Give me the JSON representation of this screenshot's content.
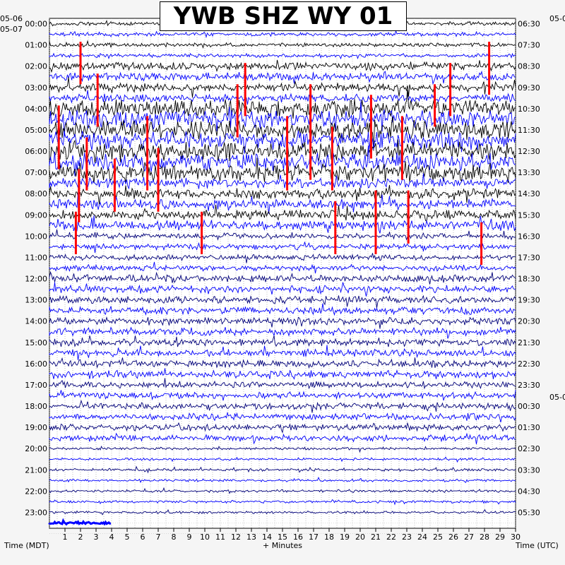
{
  "chart_data": {
    "type": "line",
    "title": "YWB SHZ WY 01",
    "xlabel": "+ Minutes",
    "left_axis_label": "Time (MDT)",
    "right_axis_label": "Time (UTC)",
    "x_ticks": [
      "1",
      "2",
      "3",
      "4",
      "5",
      "6",
      "7",
      "8",
      "9",
      "10",
      "11",
      "12",
      "13",
      "14",
      "15",
      "16",
      "17",
      "18",
      "19",
      "20",
      "21",
      "22",
      "23",
      "24",
      "25",
      "26",
      "27",
      "28",
      "29",
      "30"
    ],
    "xlim": [
      0,
      30
    ],
    "left_date_labels": [
      "05-06",
      "05-07"
    ],
    "right_date_labels": [
      "05-0",
      "05-0"
    ],
    "left_hours": [
      "00:00",
      "01:00",
      "02:00",
      "03:00",
      "04:00",
      "05:00",
      "06:00",
      "07:00",
      "08:00",
      "09:00",
      "10:00",
      "11:00",
      "12:00",
      "13:00",
      "14:00",
      "15:00",
      "16:00",
      "17:00",
      "18:00",
      "19:00",
      "20:00",
      "21:00",
      "22:00",
      "23:00"
    ],
    "right_hours": [
      "06:30",
      "07:30",
      "08:30",
      "09:30",
      "10:30",
      "11:30",
      "12:30",
      "13:30",
      "14:30",
      "15:30",
      "16:30",
      "17:30",
      "18:30",
      "19:30",
      "20:30",
      "21:30",
      "22:30",
      "23:30",
      "00:30",
      "01:30",
      "02:30",
      "03:30",
      "04:30",
      "05:30"
    ],
    "trace_colors": [
      "#000000",
      "#ff0000",
      "#0000ff",
      "#00007a"
    ],
    "trace_count": 48,
    "last_trace_minutes": 4,
    "grid": "dotted",
    "clipped_event_color": "#ff0000"
  }
}
